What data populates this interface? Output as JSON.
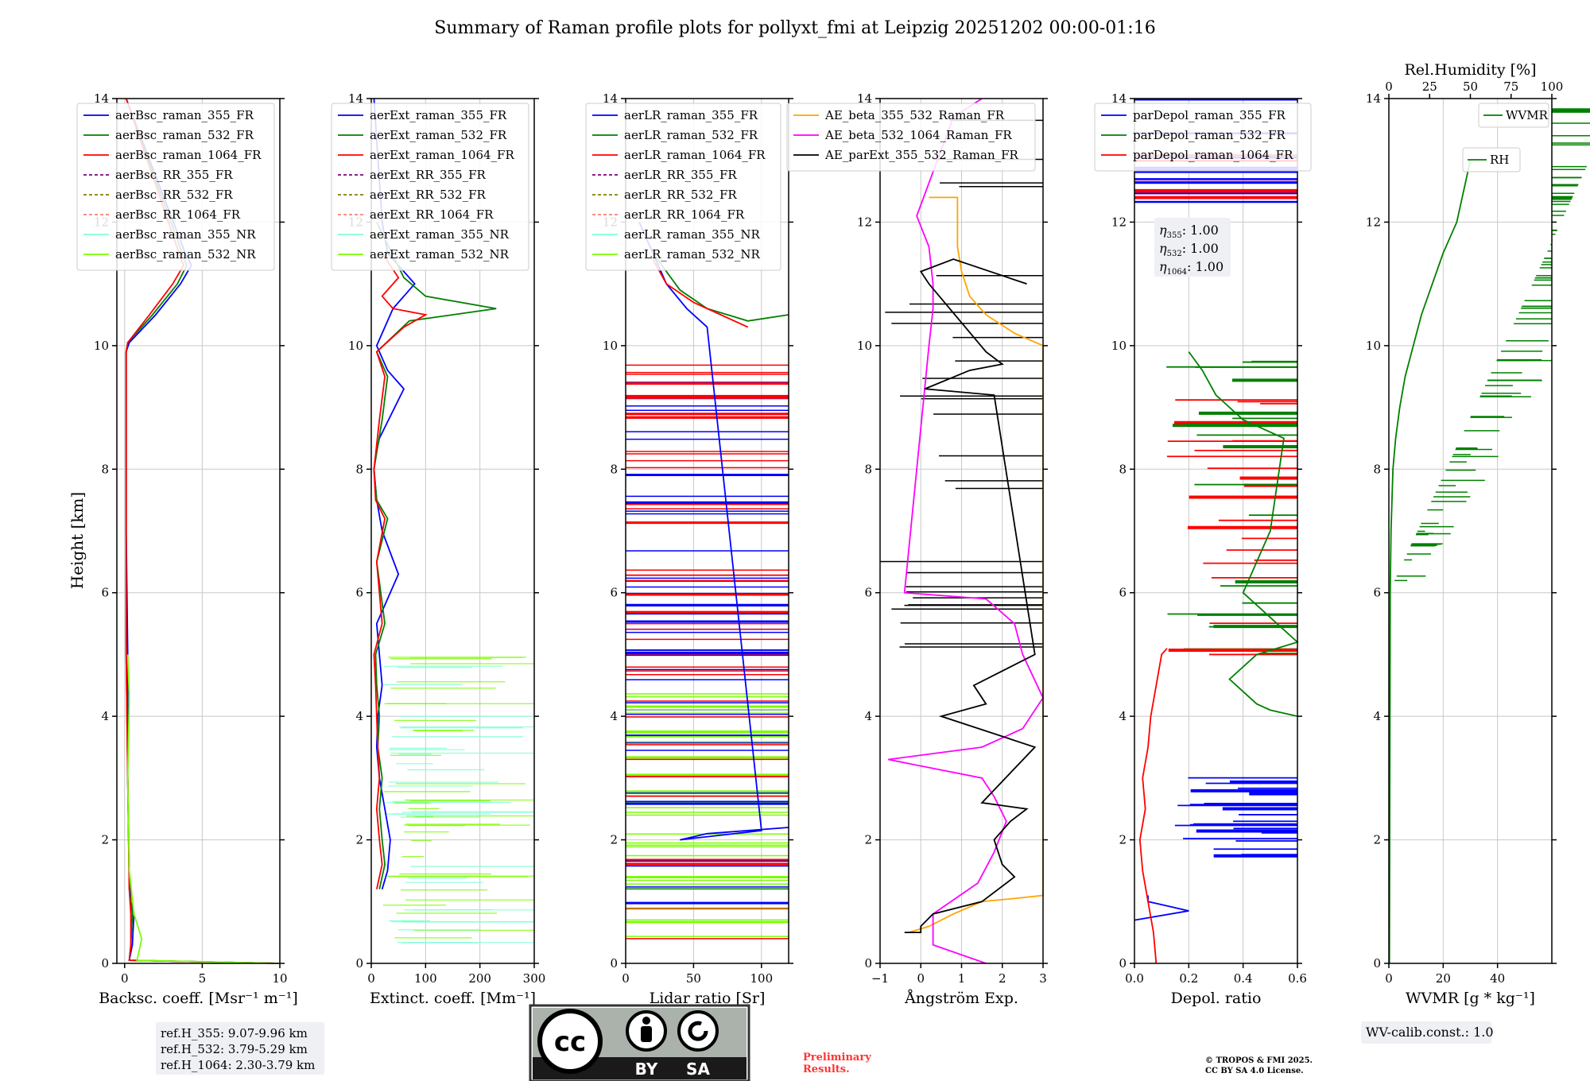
{
  "title": "Summary of Raman profile plots for pollyxt_fmi at Leipzig 20251202 00:00-01:16",
  "ylabel": "Height [km]",
  "height_ticks": [
    "0",
    "2",
    "4",
    "6",
    "8",
    "10",
    "12",
    "14"
  ],
  "ylim": [
    0,
    14
  ],
  "colors": {
    "blue": "#0000ff",
    "green": "#008000",
    "red": "#ff0000",
    "purple": "#800080",
    "olive": "#808000",
    "salmon": "#fa8072",
    "cyan": "#7fffd4",
    "lightgreen": "#7cfc00",
    "orange": "#ffa500",
    "magenta": "#ff00ff",
    "black": "#000000",
    "grid": "#c8c8c8"
  },
  "chart_data": [
    {
      "type": "line",
      "xlabel": "Backsc. coeff. [Msr⁻¹ m⁻¹]",
      "xlim": [
        -0.5,
        10
      ],
      "xticks": [
        "0",
        "5",
        "10"
      ],
      "legend": [
        "aerBsc_raman_355_FR",
        "aerBsc_raman_532_FR",
        "aerBsc_raman_1064_FR",
        "aerBsc_RR_355_FR",
        "aerBsc_RR_532_FR",
        "aerBsc_RR_1064_FR",
        "aerBsc_raman_355_NR",
        "aerBsc_raman_532_NR"
      ],
      "series": [
        {
          "name": "aerBsc_raman_355_FR",
          "color": "blue",
          "x": [
            10,
            0.3,
            0.5,
            0.6,
            0.4,
            0.3,
            0.2,
            0.2,
            0.1,
            0.1,
            0.1,
            0.3,
            2.0,
            3.6,
            4.3,
            3.9,
            0.1
          ],
          "y": [
            0,
            0.05,
            0.3,
            0.8,
            1.0,
            1.5,
            3,
            5,
            7,
            9,
            9.9,
            10.05,
            10.5,
            11.0,
            11.3,
            11.5,
            14
          ]
        },
        {
          "name": "aerBsc_raman_532_FR",
          "color": "green",
          "x": [
            10,
            0.3,
            0.4,
            0.5,
            0.3,
            0.2,
            0.1,
            0.1,
            0.1,
            0.1,
            0.2,
            1.8,
            3.4,
            4.0,
            3.7,
            0.1
          ],
          "y": [
            0,
            0.05,
            0.3,
            0.8,
            1.2,
            3,
            5,
            7,
            9,
            9.9,
            10.05,
            10.5,
            11.0,
            11.3,
            11.5,
            14
          ]
        },
        {
          "name": "aerBsc_raman_1064_FR",
          "color": "red",
          "x": [
            10,
            0.3,
            0.4,
            0.4,
            0.3,
            0.2,
            0.1,
            0.1,
            0.1,
            0.1,
            0.2,
            1.6,
            3.1,
            3.8,
            3.5,
            0.1
          ],
          "y": [
            0,
            0.05,
            0.3,
            0.8,
            1.2,
            3,
            5,
            7,
            9,
            9.9,
            10.05,
            10.5,
            11.0,
            11.3,
            11.5,
            14
          ]
        },
        {
          "name": "aerBsc_raman_532_NR",
          "color": "lightgreen",
          "x": [
            10,
            0.8,
            1.1,
            0.6,
            0.3,
            0.2,
            0.3,
            0.2
          ],
          "y": [
            0,
            0.05,
            0.4,
            0.8,
            1.5,
            3,
            4.3,
            5
          ]
        }
      ]
    },
    {
      "type": "line",
      "xlabel": "Extinct. coeff. [Mm⁻¹]",
      "xlim": [
        0,
        300
      ],
      "xticks": [
        "0",
        "100",
        "200",
        "300"
      ],
      "legend": [
        "aerExt_raman_355_FR",
        "aerExt_raman_532_FR",
        "aerExt_raman_1064_FR",
        "aerExt_RR_355_FR",
        "aerExt_RR_532_FR",
        "aerExt_RR_1064_FR",
        "aerExt_raman_355_NR",
        "aerExt_raman_532_NR"
      ],
      "series": [
        {
          "name": "aerExt_raman_355_FR",
          "color": "blue",
          "x": [
            20,
            30,
            35,
            25,
            15,
            10,
            12,
            20,
            15,
            10,
            30,
            50,
            20,
            10,
            5,
            10,
            15,
            60,
            30,
            10,
            40,
            80,
            30,
            20,
            5
          ],
          "y": [
            1.2,
            1.5,
            2.0,
            2.5,
            3.0,
            3.5,
            4.0,
            4.5,
            5.0,
            5.5,
            5.9,
            6.3,
            7.0,
            7.5,
            8.0,
            8.3,
            8.5,
            9.3,
            9.6,
            10.0,
            10.6,
            11.0,
            11.5,
            12.0,
            14
          ]
        },
        {
          "name": "aerExt_raman_532_FR",
          "color": "green",
          "x": [
            15,
            25,
            20,
            15,
            20,
            12,
            15,
            10,
            8,
            25,
            10,
            30,
            10,
            5,
            20,
            30,
            10,
            70,
            150,
            230,
            100,
            60,
            10
          ],
          "y": [
            1.2,
            1.6,
            2.0,
            2.5,
            3.0,
            3.5,
            4.0,
            4.5,
            5.0,
            5.5,
            6.5,
            7.2,
            7.5,
            8.0,
            8.8,
            9.5,
            9.9,
            10.4,
            10.5,
            10.6,
            10.8,
            11.1,
            12.0
          ]
        },
        {
          "name": "aerExt_raman_1064_FR",
          "color": "red",
          "x": [
            10,
            20,
            15,
            10,
            15,
            12,
            10,
            8,
            5,
            20,
            10,
            25,
            8,
            5,
            15,
            25,
            10,
            60,
            100,
            40,
            20,
            50,
            20
          ],
          "y": [
            1.2,
            1.6,
            2.0,
            2.5,
            3.0,
            3.5,
            4.0,
            4.5,
            5.0,
            5.5,
            6.5,
            7.2,
            7.5,
            8.0,
            8.8,
            9.5,
            9.9,
            10.3,
            10.5,
            10.6,
            10.8,
            11.1,
            11.5
          ]
        }
      ]
    },
    {
      "type": "line",
      "xlabel": "Lidar ratio [Sr]",
      "xlim": [
        0,
        120
      ],
      "xticks": [
        "0",
        "50",
        "100"
      ],
      "legend": [
        "aerLR_raman_355_FR",
        "aerLR_raman_532_FR",
        "aerLR_raman_1064_FR",
        "aerLR_RR_355_FR",
        "aerLR_RR_532_FR",
        "aerLR_RR_1064_FR",
        "aerLR_raman_355_NR",
        "aerLR_raman_532_NR"
      ],
      "series": [
        {
          "name": "aerLR_raman_355_FR",
          "color": "blue",
          "x": [
            120,
            60,
            40,
            100,
            60,
            45,
            30,
            20,
            10
          ],
          "y": [
            2.2,
            2.1,
            2.0,
            2.15,
            10.3,
            10.6,
            11.0,
            11.5,
            12
          ]
        },
        {
          "name": "aerLR_raman_532_FR",
          "color": "green",
          "x": [
            120,
            90,
            60,
            40,
            30,
            20
          ],
          "y": [
            10.5,
            10.4,
            10.6,
            10.9,
            11.2,
            11.5
          ]
        },
        {
          "name": "aerLR_raman_1064_FR",
          "color": "red",
          "x": [
            90,
            70,
            50,
            30,
            20
          ],
          "y": [
            10.3,
            10.5,
            10.7,
            11.0,
            11.4
          ]
        }
      ]
    },
    {
      "type": "line",
      "xlabel": "Ångström Exp.",
      "xlim": [
        -1,
        3
      ],
      "xticks": [
        "−1",
        "0",
        "1",
        "2",
        "3"
      ],
      "legend": [
        "AE_beta_355_532_Raman_FR",
        "AE_beta_532_1064_Raman_FR",
        "AE_parExt_355_532_Raman_FR"
      ],
      "series": [
        {
          "name": "AE_beta_355_532_Raman_FR",
          "color": "orange",
          "x": [
            -0.3,
            0.2,
            0.8,
            1.5,
            2.3,
            3,
            3,
            2.3,
            1.6,
            1.2,
            1.0,
            0.9,
            0.9,
            0.9,
            0.9,
            0.8,
            0.2
          ],
          "y": [
            0.5,
            0.6,
            0.8,
            1.0,
            1.05,
            1.1,
            10,
            10.2,
            10.5,
            10.8,
            11.2,
            11.6,
            12.0,
            12.2,
            12.4,
            12.4,
            12.4
          ]
        },
        {
          "name": "AE_beta_532_1064_Raman_FR",
          "color": "magenta",
          "x": [
            1.6,
            0.3,
            0.3,
            1.4,
            1.8,
            2.1,
            1.8,
            1.5,
            -0.8,
            1.5,
            2.5,
            3.0,
            2.5,
            2.3,
            1.6,
            -0.4,
            0.2,
            0.3,
            0.3,
            0.2,
            -0.1,
            0.8,
            1.5
          ],
          "y": [
            0,
            0.3,
            0.8,
            1.3,
            1.8,
            2.3,
            2.7,
            3.0,
            3.3,
            3.5,
            3.8,
            4.3,
            5.0,
            5.5,
            5.9,
            6.0,
            10.0,
            10.6,
            11.0,
            11.6,
            12.1,
            13.7,
            14
          ]
        },
        {
          "name": "AE_parExt_355_532_Raman_FR",
          "color": "black",
          "x": [
            -0.4,
            0,
            0,
            0.3,
            1.5,
            2.3,
            2.0,
            1.8,
            2.2,
            2.6,
            1.5,
            2.8,
            0.5,
            1.6,
            1.3,
            2.2,
            2.8,
            1.8,
            0.1,
            1.2,
            2.0,
            1.6,
            0.2,
            0.0,
            0.8,
            2.6
          ],
          "y": [
            0.5,
            0.5,
            0.6,
            0.8,
            1.0,
            1.4,
            1.6,
            2.0,
            2.3,
            2.5,
            2.6,
            3.5,
            4.0,
            4.2,
            4.5,
            4.8,
            5.0,
            9.2,
            9.3,
            9.6,
            9.7,
            9.9,
            11.0,
            11.2,
            11.4,
            11.0
          ]
        }
      ]
    },
    {
      "type": "line",
      "xlabel": "Depol. ratio",
      "xlim": [
        0,
        0.6
      ],
      "xticks": [
        "0.0",
        "0.2",
        "0.4",
        "0.6"
      ],
      "legend": [
        "parDepol_raman_355_FR",
        "parDepol_raman_532_FR",
        "parDepol_raman_1064_FR"
      ],
      "series": [
        {
          "name": "parDepol_raman_355_FR",
          "color": "blue",
          "x": [
            0.0,
            0.2,
            0.1,
            0.05,
            0.05
          ],
          "y": [
            0.7,
            0.85,
            0.95,
            1.0,
            1.1
          ]
        },
        {
          "name": "parDepol_raman_1064_FR",
          "color": "red",
          "x": [
            0.08,
            0.07,
            0.05,
            0.03,
            0.02,
            0.04,
            0.03,
            0.05,
            0.06,
            0.08,
            0.1,
            0.12
          ],
          "y": [
            0,
            0.5,
            1.0,
            1.5,
            2.0,
            2.5,
            3.0,
            3.5,
            4.0,
            4.5,
            5.0,
            5.1
          ]
        },
        {
          "name": "parDepol_raman_532_FR",
          "color": "green",
          "x": [
            0.6,
            0.5,
            0.45,
            0.4,
            0.35,
            0.45,
            0.6,
            0.5,
            0.4,
            0.45,
            0.5,
            0.55,
            0.4,
            0.3,
            0.25,
            0.2
          ],
          "y": [
            4.0,
            4.1,
            4.2,
            4.4,
            4.6,
            5.0,
            5.2,
            5.6,
            6.0,
            6.5,
            7.0,
            8.5,
            8.8,
            9.2,
            9.6,
            9.9
          ]
        }
      ]
    },
    {
      "type": "line",
      "xlabel": "WVMR [g * kg⁻¹]",
      "xlabel_parts": [
        "WVMR [",
        "g * kg",
        "⁻¹",
        "]"
      ],
      "xlim": [
        0,
        60
      ],
      "xticks": [
        "0",
        "20",
        "40"
      ],
      "top_xlabel": "Rel.Humidity [%]",
      "top_xticks": [
        "0",
        "25",
        "50",
        "75",
        "100"
      ],
      "legend": [
        "WVMR",
        "RH"
      ],
      "series": [
        {
          "name": "WVMR",
          "color": "green",
          "x": [
            0.2,
            0.3,
            0.4,
            0.5,
            0.8,
            1.5,
            2.5,
            4,
            6,
            9,
            12,
            16,
            20,
            25,
            30
          ],
          "y": [
            0,
            2,
            4,
            6,
            7,
            8,
            8.5,
            9,
            9.5,
            10,
            10.5,
            11,
            11.5,
            12,
            13
          ]
        }
      ]
    }
  ],
  "annotations": {
    "eta_355": "1.00",
    "eta_532": "1.00",
    "eta_1064": "1.00",
    "refH": [
      "ref.H_355: 9.07-9.96 km",
      "ref.H_532: 3.79-5.29 km",
      "ref.H_1064: 2.30-3.79 km"
    ],
    "wv_calib": "WV-calib.const.: 1.0",
    "preliminary": [
      "Preliminary",
      "Results."
    ],
    "copyright": [
      "© TROPOS & FMI 2025.",
      "CC BY SA 4.0 License."
    ],
    "cc_badge": {
      "cc": "cc",
      "by": "BY",
      "sa": "SA"
    }
  }
}
